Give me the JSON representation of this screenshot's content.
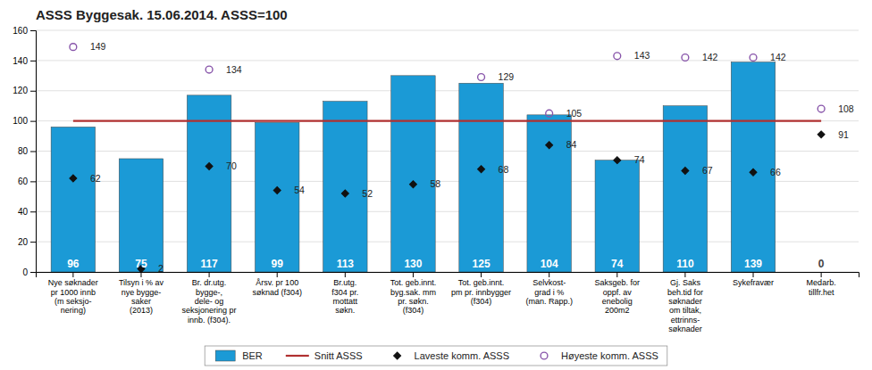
{
  "chart_data": {
    "type": "bar",
    "title": "ASSS Byggesak.  15.06.2014.  ASSS=100",
    "categories": [
      "Nye søknader\npr 1000 innb\n(m seksjo-\nnering)",
      "Tilsyn i % av\nnye bygge-\nsaker\n(2013)",
      "Br. dr.utg.\nbygge-,\ndele- og\nseksjonering pr\ninnb.  (f304).",
      "Årsv. pr 100\nsøknad (f304)",
      "Br.utg.\nf304 pr.\nmottatt\nsøkn.",
      "Tot. geb.innt.\nbyg.sak.   mm\npr.  søkn.\n(f304)",
      "Tot. geb.innt.\npm pr. innbygger\n(f304)",
      "Selvkost-\ngrad i %\n(man. Rapp.)",
      "Saksgeb. for\noppf. av\nenebolig\n200m2",
      "Gj. Saks\nbeh.tid  for\nsøknader\nom tiltak,\nettrinns-\nsøknader",
      "Sykefravær",
      "Medarb.\ntillfr.het"
    ],
    "series": [
      {
        "name": "BER",
        "type": "bar",
        "color": "#1b9ad6",
        "colors": [
          "#1b9ad6",
          "#1b9ad6",
          "#1b9ad6",
          "#1b9ad6",
          "#1b9ad6",
          "#1b9ad6",
          "#1b9ad6",
          "#1b9ad6",
          "#1b9ad6",
          "#1b9ad6",
          "#1b9ad6",
          "#cde8f5"
        ],
        "values": [
          96,
          75,
          117,
          99,
          113,
          130,
          125,
          104,
          74,
          110,
          139,
          0
        ],
        "data_labels": true
      },
      {
        "name": "Snitt ASSS",
        "type": "line",
        "color": "#b03030",
        "values": [
          100,
          100,
          100,
          100,
          100,
          100,
          100,
          100,
          100,
          100,
          100,
          100
        ]
      },
      {
        "name": "Laveste komm. ASSS",
        "type": "scatter",
        "marker": "diamond",
        "color": "#111111",
        "values": [
          62,
          2,
          70,
          54,
          52,
          58,
          68,
          84,
          74,
          67,
          66,
          91
        ],
        "data_labels": true
      },
      {
        "name": "Høyeste komm. ASSS",
        "type": "scatter",
        "marker": "circle",
        "color": "#8855aa",
        "values": [
          149,
          null,
          134,
          null,
          null,
          null,
          129,
          105,
          143,
          142,
          142,
          108
        ],
        "data_labels": true
      }
    ],
    "ylim": [
      0,
      160
    ],
    "yticks": [
      0,
      20,
      40,
      60,
      80,
      100,
      120,
      140,
      160
    ],
    "grid": true,
    "legend": "bottom"
  }
}
